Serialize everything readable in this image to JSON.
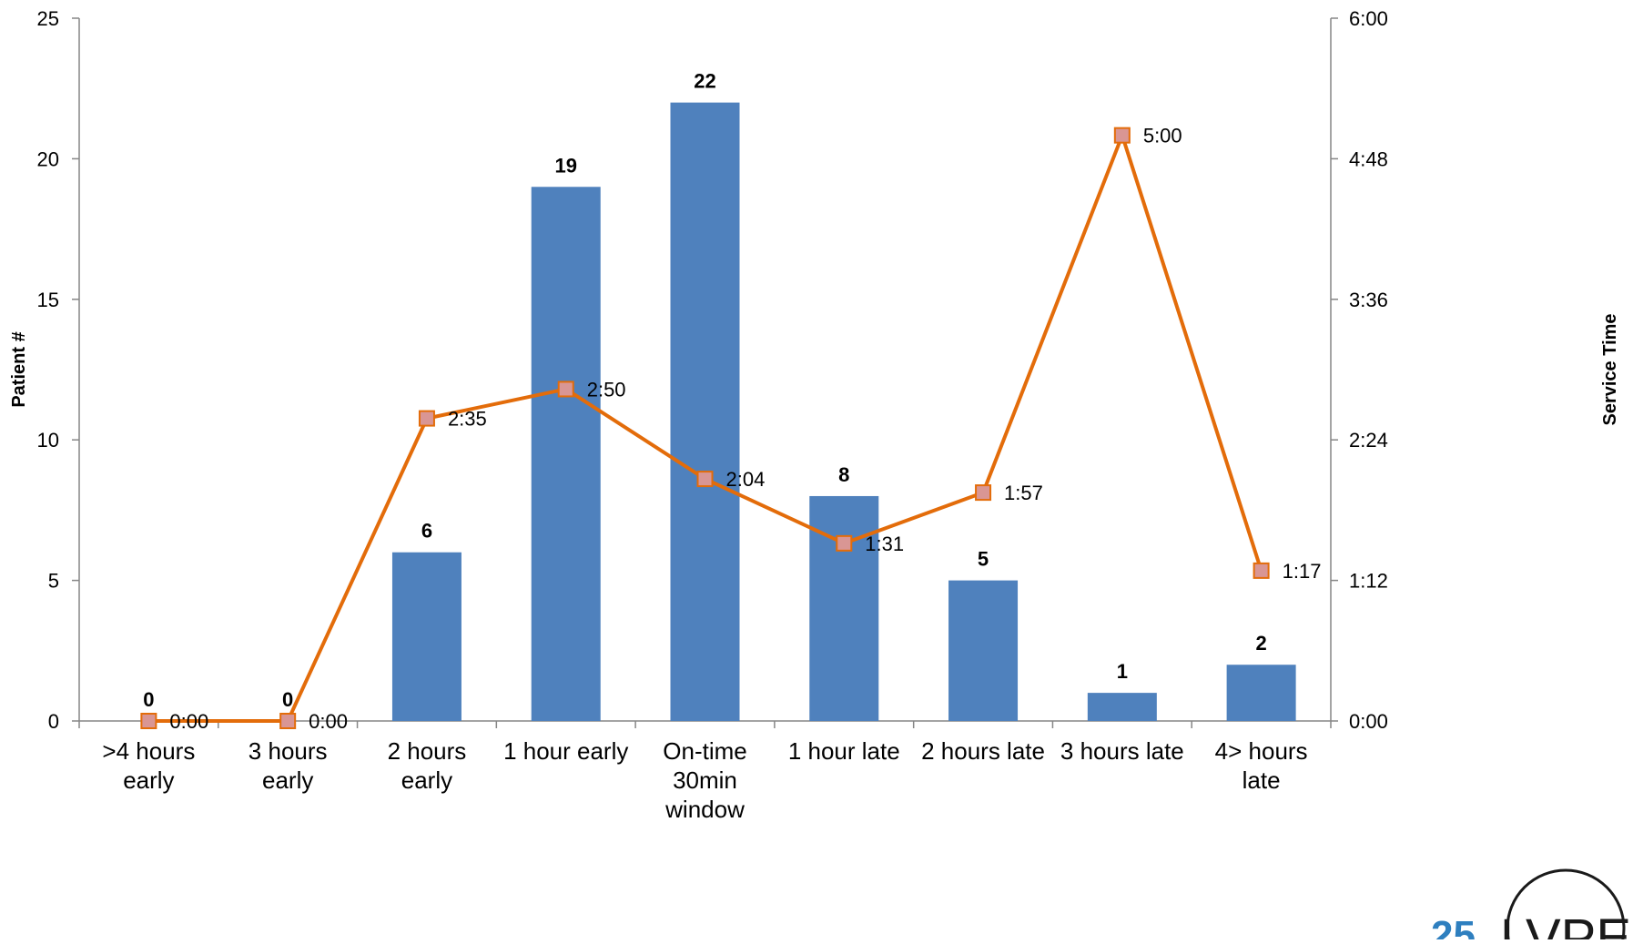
{
  "chart_data": {
    "type": "bar",
    "categories": [
      ">4 hours\nearly",
      "3 hours\nearly",
      "2 hours\nearly",
      "1 hour early",
      "On-time\n30min\nwindow",
      "1 hour late",
      "2 hours late",
      "3 hours late",
      "4> hours\nlate"
    ],
    "series": [
      {
        "type": "bar",
        "values": [
          0,
          0,
          6,
          19,
          22,
          8,
          5,
          1,
          2
        ],
        "labels": [
          "0",
          "0",
          "6",
          "19",
          "22",
          "8",
          "5",
          "1",
          "2"
        ],
        "color": "#4f81bd",
        "axis": "left"
      },
      {
        "type": "line",
        "values_minutes": [
          0,
          0,
          155,
          170,
          124,
          91,
          117,
          300,
          77
        ],
        "labels": [
          "0:00",
          "0:00",
          "2:35",
          "2:50",
          "2:04",
          "1:31",
          "1:57",
          "5:00",
          "1:17"
        ],
        "color": "#e36c0a",
        "marker_color": "#d99694",
        "axis": "right"
      }
    ],
    "ylabel": "Patient #",
    "ylabel_right": "Service Time",
    "ylim": [
      0,
      25
    ],
    "yticks": [
      "0",
      "5",
      "10",
      "15",
      "20",
      "25"
    ],
    "ylim_right_minutes": [
      0,
      360
    ],
    "yticks_right": [
      "0:00",
      "1:12",
      "2:24",
      "3:36",
      "4:48",
      "6:00"
    ],
    "grid": false,
    "legend": "none"
  },
  "logo": {
    "text": "LVPEI",
    "number": "25"
  }
}
